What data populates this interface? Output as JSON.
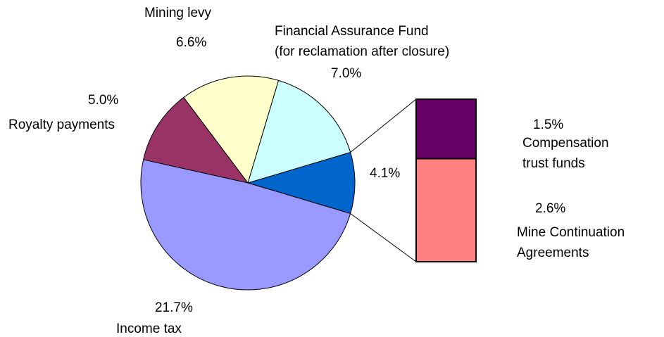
{
  "chart_data": {
    "type": "pie-of-bar",
    "slices": {
      "categories": [
        null,
        "Financial Assurance Fund\n(for reclamation after closure)",
        "Mining levy",
        "Royalty payments",
        "Income tax"
      ],
      "values": [
        4.1,
        7.0,
        6.6,
        5.0,
        21.7
      ],
      "value_labels": [
        "4.1%",
        "7.0%",
        "6.6%",
        "5.0%",
        "21.7%"
      ],
      "colors": [
        "#0066cc",
        "#ccffff",
        "#ffffcc",
        "#993366",
        "#9999ff"
      ]
    },
    "bar": {
      "categories": [
        "Compensation\ntrust funds",
        "Mine Continuation\nAgreements"
      ],
      "values": [
        1.5,
        2.6
      ],
      "value_labels": [
        "1.5%",
        "2.6%"
      ],
      "colors": [
        "#660066",
        "#ff8080"
      ]
    }
  }
}
